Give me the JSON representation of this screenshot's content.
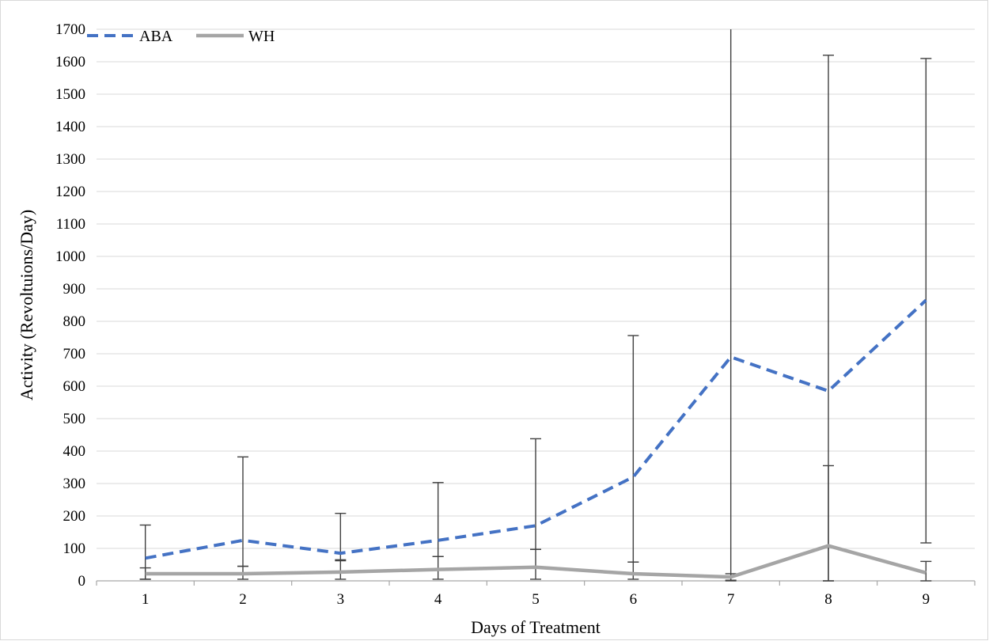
{
  "chart_data": {
    "type": "line",
    "title": "",
    "xlabel": "Days of Treatment",
    "ylabel": "Activity (Revoltuions/Day)",
    "x": [
      1,
      2,
      3,
      4,
      5,
      6,
      7,
      8,
      9
    ],
    "ylim": [
      0,
      1700
    ],
    "yticks": [
      0,
      100,
      200,
      300,
      400,
      500,
      600,
      700,
      800,
      900,
      1000,
      1100,
      1200,
      1300,
      1400,
      1500,
      1600,
      1700
    ],
    "grid": true,
    "legend_position": "top-left",
    "series": [
      {
        "name": "ABA",
        "color": "#4472c4",
        "style": "dashed",
        "values": [
          70,
          125,
          85,
          125,
          170,
          320,
          690,
          585,
          865
        ],
        "error_upper": [
          172,
          382,
          208,
          303,
          438,
          756,
          1700,
          1620,
          1610
        ],
        "error_lower": [
          5,
          45,
          65,
          75,
          97,
          58,
          0,
          0,
          117
        ]
      },
      {
        "name": "WH",
        "color": "#a5a5a5",
        "style": "solid",
        "values": [
          22,
          22,
          27,
          35,
          42,
          22,
          12,
          108,
          25
        ],
        "error_upper": [
          40,
          45,
          62,
          75,
          97,
          58,
          22,
          355,
          60
        ],
        "error_lower": [
          5,
          5,
          5,
          5,
          5,
          5,
          2,
          0,
          0
        ]
      }
    ]
  }
}
